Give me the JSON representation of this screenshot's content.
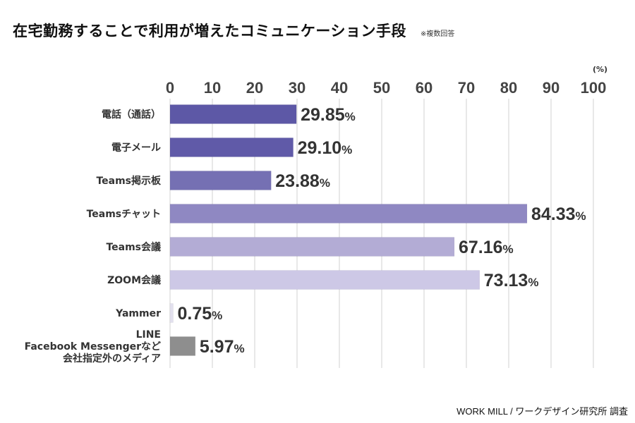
{
  "title": "在宅勤務することで利用が増えたコミュニケーション手段",
  "note": "※複数回答",
  "unit": "(%)",
  "source": "WORK MILL / ワークデザイン研究所 調査",
  "value_suffix": "%",
  "chart_data": {
    "type": "bar",
    "orientation": "horizontal",
    "title": "在宅勤務することで利用が増えたコミュニケーション手段",
    "xlabel": "(%)",
    "ylabel": "",
    "xlim": [
      0,
      100
    ],
    "ticks": [
      0,
      10,
      20,
      30,
      40,
      50,
      60,
      70,
      80,
      90,
      100
    ],
    "grid": true,
    "categories": [
      [
        "電話（通話）"
      ],
      [
        "電子メール"
      ],
      [
        "Teams掲示板"
      ],
      [
        "Teamsチャット"
      ],
      [
        "Teams会議"
      ],
      [
        "ZOOM会議"
      ],
      [
        "Yammer"
      ],
      [
        "LINE",
        "Facebook Messengerなど",
        "会社指定外のメディア"
      ]
    ],
    "values": [
      29.85,
      29.1,
      23.88,
      84.33,
      67.16,
      73.13,
      0.75,
      5.97
    ],
    "value_labels": [
      "29.85",
      "29.10",
      "23.88",
      "84.33",
      "67.16",
      "73.13",
      "0.75",
      "5.97"
    ],
    "bar_colors": [
      "#5d58a6",
      "#605aa8",
      "#7570b3",
      "#8f88c2",
      "#b3acd5",
      "#cdc8e6",
      "#e2e0ee",
      "#8e8e8e"
    ]
  }
}
